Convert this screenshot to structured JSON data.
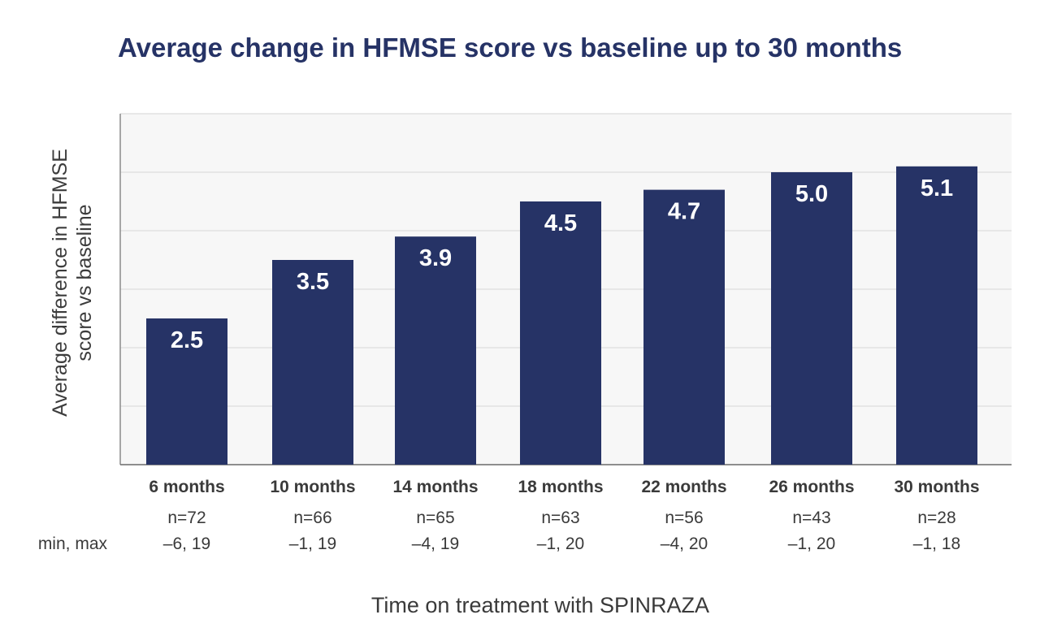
{
  "chart_data": {
    "type": "bar",
    "title": "Average change in HFMSE score vs baseline up to 30 months",
    "ylabel_lines": [
      "Average difference in HFMSE",
      "score vs baseline"
    ],
    "xlabel": "Time on treatment with SPINRAZA",
    "categories": [
      "6 months",
      "10 months",
      "14 months",
      "18 months",
      "22 months",
      "26 months",
      "30 months"
    ],
    "values": [
      2.5,
      3.5,
      3.9,
      4.5,
      4.7,
      5.0,
      5.1
    ],
    "value_labels": [
      "2.5",
      "3.5",
      "3.9",
      "4.5",
      "4.7",
      "5.0",
      "5.1"
    ],
    "n_values": [
      "n=72",
      "n=66",
      "n=65",
      "n=63",
      "n=56",
      "n=43",
      "n=28"
    ],
    "minmax_label": "min, max",
    "minmax_values": [
      "–6, 19",
      "–1, 19",
      "–4, 19",
      "–1, 20",
      "–4, 20",
      "–1, 20",
      "–1, 18"
    ],
    "ylim": [
      0,
      6
    ],
    "grid": true,
    "colors": {
      "bar": "#263366",
      "title": "#263366",
      "grid": "#e2e2e2",
      "plot_bg": "#f7f7f7"
    }
  }
}
